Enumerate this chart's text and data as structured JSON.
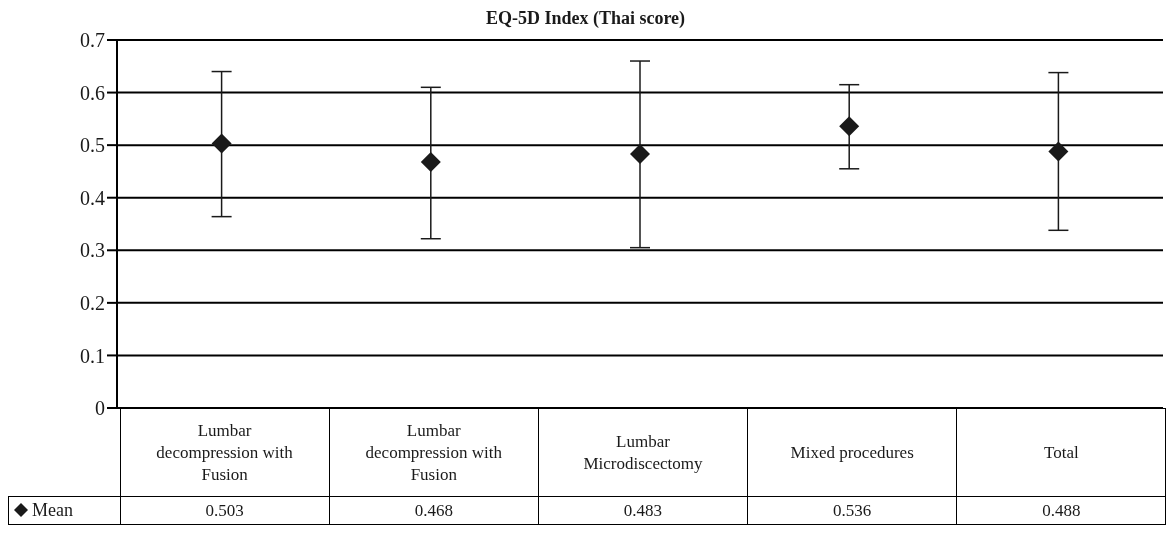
{
  "chart_data": {
    "type": "scatter",
    "title": "EQ-5D Index (Thai score)",
    "categories": [
      "Lumbar decompression with Fusion",
      "Lumbar decompression with Fusion",
      "Lumbar Microdiscectomy",
      "Mixed procedures",
      "Total"
    ],
    "series": [
      {
        "name": "Mean",
        "color": "#1a1a1a",
        "values": [
          0.503,
          0.468,
          0.483,
          0.536,
          0.488
        ],
        "errors": [
          [
            0.364,
            0.64
          ],
          [
            0.322,
            0.61
          ],
          [
            0.305,
            0.66
          ],
          [
            0.455,
            0.615
          ],
          [
            0.338,
            0.638
          ]
        ]
      }
    ],
    "ylim": [
      0,
      0.7
    ],
    "yticks": [
      0,
      0.1,
      0.2,
      0.3,
      0.4,
      0.5,
      0.6,
      0.7
    ],
    "grid": "y",
    "marker": "diamond",
    "data_labels": true,
    "legend": "bottom left"
  }
}
